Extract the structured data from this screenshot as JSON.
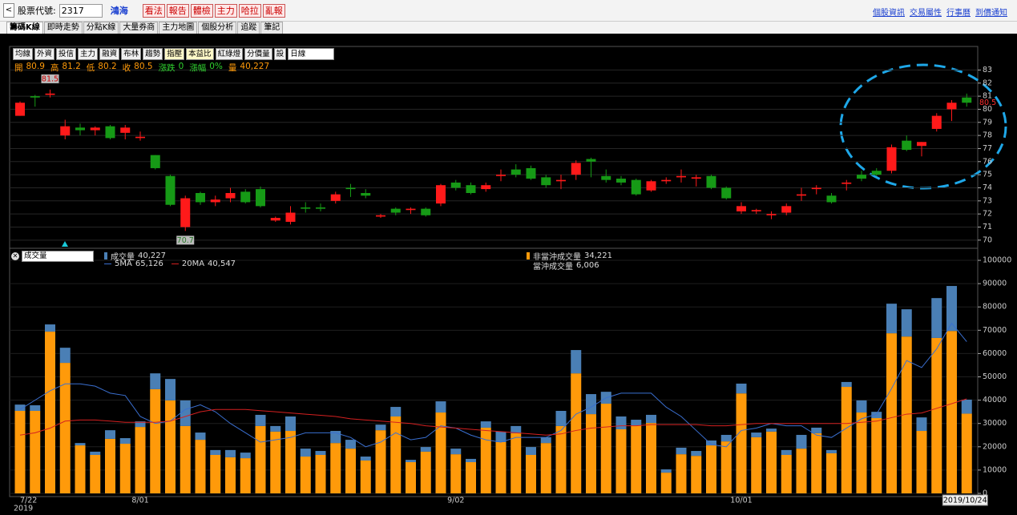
{
  "toolbar": {
    "label": "股票代號:",
    "code": "2317",
    "name": "鴻海",
    "buttons": [
      "看法",
      "報告",
      "體檢",
      "主力",
      "哈拉",
      "亂報"
    ],
    "links": [
      "個股資訊",
      "交易屬性",
      "行事曆",
      "到價通知"
    ]
  },
  "tabs": [
    "籌碼K線",
    "即時走勢",
    "分點K線",
    "大量券商",
    "主力地圖",
    "個股分析",
    "追蹤",
    "筆記"
  ],
  "chart_buttons": [
    "均線",
    "外資",
    "投信",
    "主力",
    "融資",
    "布林",
    "趨勢",
    "指壓",
    "本益比",
    "紅綠燈",
    "分價量",
    "設"
  ],
  "period": "日線",
  "info": [
    {
      "label": "開",
      "value": "80.9"
    },
    {
      "label": "高",
      "value": "81.2"
    },
    {
      "label": "低",
      "value": "80.2"
    },
    {
      "label": "收",
      "value": "80.5"
    },
    {
      "label": "漲跌",
      "value": "0"
    },
    {
      "label": "漲幅",
      "value": "0%"
    },
    {
      "label": "量",
      "value": "40,227"
    }
  ],
  "chart_data": [
    {
      "type": "candlestick",
      "up_color": "#ff1a1a",
      "down_color": "#169a16",
      "grid": true,
      "categories": [
        "7/22",
        null,
        null,
        null,
        null,
        null,
        null,
        null,
        "8/01",
        null,
        null,
        null,
        null,
        null,
        null,
        null,
        null,
        null,
        null,
        null,
        null,
        null,
        null,
        null,
        null,
        null,
        null,
        null,
        null,
        "9/02",
        null,
        null,
        null,
        null,
        null,
        null,
        null,
        null,
        null,
        null,
        null,
        null,
        null,
        null,
        null,
        null,
        null,
        null,
        "10/01",
        null,
        null,
        null,
        null,
        null,
        null,
        null,
        null,
        null,
        null,
        null,
        null,
        null,
        null,
        "2019/10/24"
      ],
      "year_label": "2019",
      "open": [
        79.5,
        81.0,
        81.1,
        78.0,
        78.6,
        78.4,
        78.7,
        78.2,
        77.8,
        76.5,
        74.9,
        71.0,
        73.6,
        72.9,
        73.2,
        73.7,
        73.9,
        71.5,
        71.4,
        72.5,
        72.5,
        73.0,
        74.0,
        73.6,
        71.8,
        72.4,
        72.3,
        72.4,
        72.8,
        74.4,
        74.2,
        73.9,
        74.9,
        75.4,
        75.5,
        74.8,
        74.5,
        75.0,
        76.2,
        74.9,
        74.7,
        74.6,
        73.8,
        74.5,
        74.8,
        74.7,
        74.9,
        74.0,
        72.2,
        72.2,
        71.9,
        72.1,
        73.4,
        73.9,
        73.4,
        74.3,
        75.0,
        75.3,
        75.3,
        77.6,
        77.2,
        78.5,
        80.0,
        80.9
      ],
      "high": [
        80.6,
        81.1,
        81.5,
        79.2,
        78.9,
        78.7,
        78.8,
        78.8,
        78.3,
        76.5,
        75.0,
        73.4,
        73.7,
        73.4,
        74.0,
        73.9,
        74.1,
        71.8,
        72.6,
        72.9,
        72.8,
        73.7,
        74.3,
        73.9,
        72.0,
        72.5,
        72.5,
        72.5,
        74.3,
        74.6,
        74.4,
        74.4,
        75.4,
        75.8,
        75.7,
        75.0,
        75.0,
        76.1,
        76.3,
        75.4,
        74.9,
        74.7,
        74.6,
        74.8,
        75.4,
        75.0,
        75.0,
        74.1,
        72.9,
        72.4,
        72.2,
        72.8,
        74.0,
        74.2,
        73.6,
        74.6,
        75.3,
        75.5,
        77.3,
        78.0,
        77.5,
        79.7,
        80.7,
        81.2
      ],
      "low": [
        79.5,
        80.2,
        80.9,
        77.7,
        78.0,
        78.0,
        77.7,
        77.7,
        77.6,
        75.4,
        72.6,
        70.7,
        72.7,
        72.6,
        72.9,
        72.8,
        72.5,
        71.4,
        71.2,
        72.1,
        72.2,
        72.8,
        73.3,
        73.2,
        71.7,
        71.9,
        72.0,
        71.8,
        72.6,
        73.8,
        73.5,
        73.7,
        74.5,
        74.8,
        74.6,
        74.0,
        73.9,
        74.6,
        74.8,
        74.4,
        74.2,
        73.4,
        73.7,
        74.3,
        74.4,
        74.1,
        73.9,
        73.1,
        72.0,
        72.0,
        71.6,
        71.9,
        73.0,
        73.5,
        72.8,
        73.8,
        74.5,
        74.9,
        75.1,
        76.8,
        76.4,
        78.3,
        79.1,
        80.2
      ],
      "close": [
        80.5,
        80.9,
        81.2,
        78.7,
        78.4,
        78.6,
        77.8,
        78.6,
        77.9,
        75.5,
        72.7,
        73.2,
        72.9,
        73.1,
        73.6,
        72.9,
        72.6,
        71.7,
        72.1,
        72.4,
        72.4,
        73.5,
        73.9,
        73.4,
        71.9,
        72.1,
        72.4,
        71.9,
        74.2,
        74.0,
        73.6,
        74.2,
        75.0,
        75.0,
        74.7,
        74.2,
        74.6,
        75.9,
        76.0,
        74.6,
        74.4,
        73.5,
        74.5,
        74.6,
        74.9,
        74.8,
        74.0,
        73.2,
        72.6,
        72.3,
        72.0,
        72.6,
        73.5,
        74.0,
        72.9,
        74.4,
        74.7,
        75.0,
        77.1,
        76.9,
        77.5,
        79.5,
        80.5,
        80.5
      ],
      "ylim": [
        69.5,
        84.8
      ],
      "yticks": [
        70,
        71,
        72,
        73,
        74,
        75,
        76,
        77,
        78,
        79,
        80,
        81,
        82,
        83
      ]
    },
    {
      "type": "stacked-bar",
      "indicator": "成交量",
      "grid": true,
      "total": {
        "name": "成交量",
        "legend_value": "40,227",
        "color": "#4a7fb5"
      },
      "series": [
        {
          "name": "非當沖成交量",
          "color": "#ff9a0a",
          "legend_value": "34,221",
          "values": [
            35400,
            35400,
            69400,
            56000,
            20600,
            16500,
            23400,
            21300,
            28500,
            44700,
            39900,
            28900,
            23000,
            16500,
            15500,
            15100,
            28900,
            26500,
            26800,
            15800,
            16500,
            21600,
            19200,
            14100,
            27100,
            33000,
            13400,
            17900,
            34700,
            16800,
            13400,
            28200,
            22000,
            25800,
            16500,
            21600,
            28900,
            51500,
            34000,
            38500,
            27500,
            29200,
            30200,
            8900,
            16800,
            16100,
            20600,
            22300,
            42900,
            24100,
            26500,
            16500,
            19200,
            25800,
            17200,
            45700,
            34700,
            32300,
            68700,
            67300,
            26800,
            66700,
            69700,
            34221
          ]
        },
        {
          "name": "當沖成交量",
          "color": "#4a7fb5",
          "legend_value": "6,006",
          "values": [
            2700,
            2400,
            3100,
            6500,
            1000,
            1400,
            3700,
            2400,
            2400,
            6800,
            9200,
            11000,
            3100,
            2100,
            3100,
            2400,
            4800,
            2400,
            6200,
            3400,
            1700,
            5200,
            3800,
            1700,
            2400,
            4100,
            1000,
            2000,
            4800,
            2400,
            1400,
            2700,
            4500,
            3100,
            3400,
            2500,
            6500,
            10000,
            8600,
            5100,
            5500,
            2400,
            3500,
            1400,
            2800,
            2100,
            2100,
            2800,
            4200,
            2000,
            1300,
            2100,
            5900,
            2400,
            1400,
            2100,
            5200,
            2700,
            12700,
            11700,
            5800,
            17100,
            19300,
            6006
          ]
        }
      ],
      "lines": [
        {
          "name": "5MA",
          "color": "#3a6fd0",
          "legend_value": "65,126",
          "values": [
            36000,
            40000,
            44000,
            47000,
            47000,
            46000,
            43000,
            42000,
            33000,
            30000,
            31000,
            36000,
            38000,
            35000,
            30000,
            26000,
            22000,
            23000,
            24000,
            26000,
            26000,
            26000,
            24000,
            20000,
            22000,
            26000,
            23000,
            24000,
            29000,
            28000,
            25000,
            23000,
            22000,
            24000,
            24000,
            24000,
            27000,
            34000,
            37000,
            41000,
            43000,
            43000,
            43000,
            37000,
            33000,
            27000,
            21000,
            20000,
            27000,
            28000,
            30000,
            29000,
            29000,
            25000,
            24000,
            28000,
            32000,
            34000,
            45000,
            57000,
            54000,
            62000,
            73000,
            65126
          ]
        },
        {
          "name": "20MA",
          "color": "#d42020",
          "legend_value": "40,547",
          "values": [
            25000,
            26000,
            28000,
            31000,
            31500,
            31500,
            31000,
            30500,
            30500,
            30500,
            31000,
            33000,
            35000,
            36000,
            36000,
            36000,
            35500,
            35000,
            34500,
            34000,
            33500,
            33000,
            32000,
            31500,
            31000,
            30500,
            30000,
            29000,
            28500,
            28000,
            27500,
            27000,
            26500,
            26000,
            25500,
            25000,
            25500,
            27000,
            28000,
            28500,
            29000,
            29000,
            29500,
            29500,
            29500,
            29500,
            29000,
            29000,
            29500,
            30000,
            30000,
            30000,
            30000,
            30000,
            30000,
            30000,
            30500,
            31000,
            32500,
            34000,
            34500,
            36500,
            38500,
            40547
          ]
        }
      ],
      "ylim": [
        0,
        104000
      ],
      "yticks": [
        0,
        10000,
        20000,
        30000,
        40000,
        50000,
        60000,
        70000,
        80000,
        90000,
        100000
      ]
    }
  ]
}
